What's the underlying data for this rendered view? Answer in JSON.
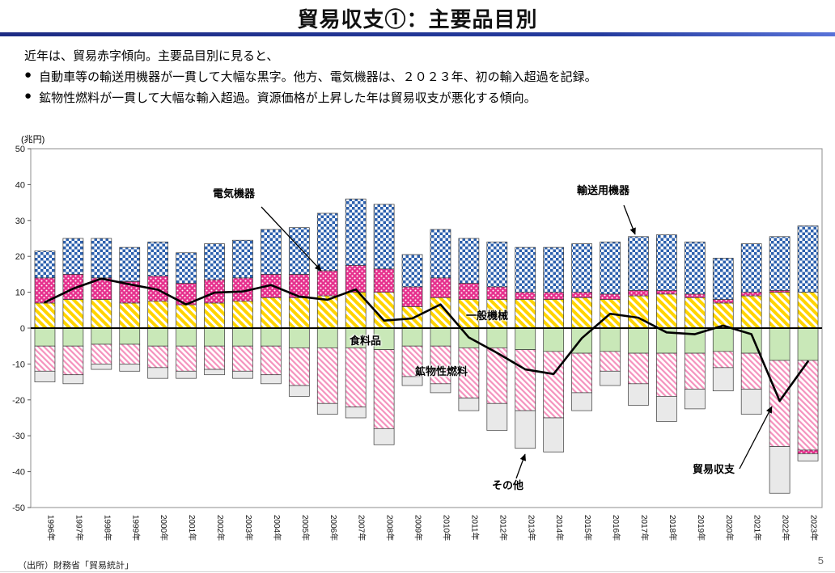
{
  "page": {
    "title": "貿易収支①：主要品目別",
    "source": "（出所）財務省「貿易統計」",
    "page_number": "5"
  },
  "intro": {
    "lead": "近年は、貿易赤字傾向。主要品目別に見ると、",
    "bullet_marker": "●",
    "bullets": [
      "自動車等の輸送用機器が一貫して大幅な黒字。他方、電気機器は、２０２３年、初の輸入超過を記録。",
      "鉱物性燃料が一貫して大幅な輸入超過。資源価格が上昇した年は貿易収支が悪化する傾向。"
    ]
  },
  "colors": {
    "transport_blue": "#2b5fad",
    "electrical_magenta": "#e6308d",
    "general_yellow": "#ffd400",
    "food_green": "#c9e8b8",
    "fuel_pink": "#f592bd",
    "other_gray": "#e9e9e9",
    "outline": "#3a3a3a",
    "line_black": "#000000",
    "rule_navy": "#1e2c84"
  },
  "chart_data": {
    "type": "bar",
    "stacked": true,
    "unit_label": "(兆円)",
    "ylim": [
      -50,
      50
    ],
    "ytick_step": 10,
    "grid": false,
    "legend": "none (labels annotated on plot)",
    "categories": [
      "1996年",
      "1997年",
      "1998年",
      "1999年",
      "2000年",
      "2001年",
      "2002年",
      "2003年",
      "2004年",
      "2005年",
      "2006年",
      "2007年",
      "2008年",
      "2009年",
      "2010年",
      "2011年",
      "2012年",
      "2013年",
      "2014年",
      "2015年",
      "2016年",
      "2017年",
      "2018年",
      "2019年",
      "2020年",
      "2021年",
      "2022年",
      "2023年"
    ],
    "series": [
      {
        "name": "一般機械",
        "pattern": "yellow-diagonal",
        "values": [
          7,
          8,
          8,
          7,
          7.5,
          6.5,
          7,
          7.5,
          8.5,
          8.5,
          9,
          10,
          10,
          6,
          8.5,
          8,
          8,
          8,
          8,
          8.5,
          8,
          9,
          9.5,
          8.5,
          7,
          9,
          10,
          10
        ]
      },
      {
        "name": "電気機器",
        "pattern": "magenta-dots",
        "values": [
          7,
          7,
          6,
          6,
          7,
          6,
          6.5,
          6.5,
          6.5,
          6.5,
          7,
          7.5,
          6.5,
          5.5,
          5.5,
          4.5,
          3.5,
          2,
          2,
          1.5,
          1.5,
          1.5,
          1,
          1,
          1,
          1,
          0.5,
          -1
        ]
      },
      {
        "name": "輸送用機器",
        "pattern": "blue-check",
        "values": [
          7.5,
          10,
          11,
          9.5,
          9.5,
          8.5,
          10,
          10.5,
          12.5,
          13,
          16,
          18.5,
          18,
          9,
          13.5,
          12.5,
          12.5,
          12.5,
          12.5,
          13.5,
          14.5,
          15,
          15.5,
          14.5,
          11.5,
          13.5,
          15,
          18.5
        ]
      },
      {
        "name": "食料品",
        "pattern": "light-green-solid",
        "values": [
          -5,
          -5,
          -4.5,
          -4.5,
          -5,
          -5,
          -5,
          -5,
          -5,
          -5.5,
          -5.5,
          -5.5,
          -6,
          -5,
          -5,
          -5.5,
          -5.5,
          -6,
          -6.5,
          -7,
          -6.5,
          -7,
          -7,
          -7,
          -6.5,
          -7,
          -9,
          -9
        ]
      },
      {
        "name": "鉱物性燃料",
        "pattern": "pink-diagonal",
        "values": [
          -7,
          -8,
          -5.5,
          -5.5,
          -6,
          -7,
          -6.5,
          -7,
          -8,
          -10.5,
          -15.5,
          -16.5,
          -22,
          -8.5,
          -10.5,
          -14,
          -15.5,
          -17,
          -18.5,
          -11,
          -5.5,
          -8.5,
          -12,
          -10,
          -4.5,
          -10,
          -24,
          -25
        ]
      },
      {
        "name": "その他",
        "pattern": "gray-solid",
        "values": [
          -3,
          -2.5,
          -1.5,
          -2,
          -3,
          -2,
          -1.5,
          -2,
          -2.5,
          -3,
          -3,
          -3,
          -4.5,
          -2.5,
          -2.5,
          -3.5,
          -7.5,
          -10.5,
          -9.5,
          -5,
          -4,
          -6,
          -7,
          -5.5,
          -6.5,
          -7,
          -13,
          -2
        ]
      }
    ],
    "line_series": {
      "name": "貿易収支",
      "color": "#000000",
      "values": [
        7.2,
        11,
        13.8,
        12.2,
        10.7,
        6.6,
        9.9,
        10.2,
        12,
        8.8,
        7.9,
        10.8,
        2.1,
        2.7,
        6.6,
        -2.6,
        -6.9,
        -11.5,
        -12.8,
        -2.8,
        4,
        2.9,
        -1.2,
        -1.7,
        0.7,
        -1.7,
        -20.3,
        -9.3
      ]
    },
    "annotations": {
      "electrical": "電気機器",
      "transport": "輸送用機器",
      "general": "一般機械",
      "food": "食料品",
      "fuel": "鉱物性燃料",
      "other": "その他",
      "balance": "貿易収支"
    }
  }
}
